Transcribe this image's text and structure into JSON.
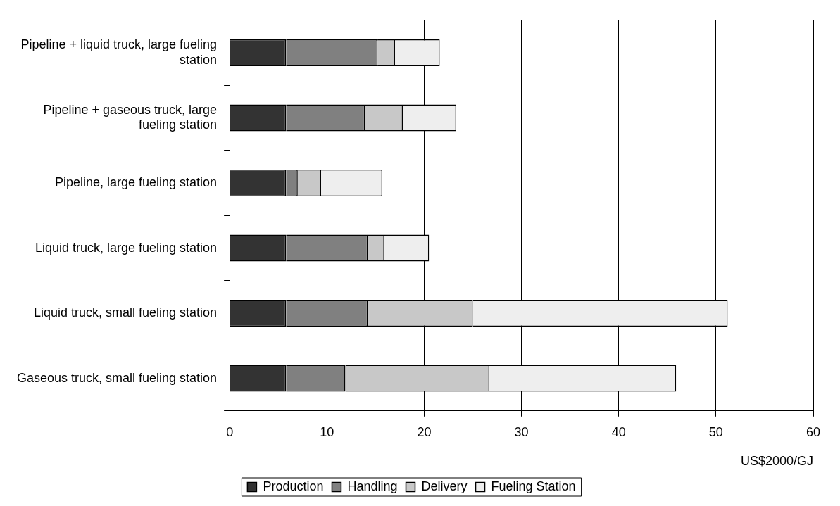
{
  "chart_data": {
    "type": "bar",
    "orientation": "horizontal",
    "stacked": true,
    "categories": [
      "Pipeline + liquid truck, large fueling station",
      "Pipeline + gaseous truck, large fueling station",
      "Pipeline, large fueling station",
      "Liquid truck, large fueling station",
      "Liquid truck, small fueling station",
      "Gaseous truck, small fueling station"
    ],
    "series": [
      {
        "name": "Production",
        "color": "#333333",
        "values": [
          5.8,
          5.8,
          5.8,
          5.8,
          5.8,
          5.8
        ]
      },
      {
        "name": "Handling",
        "color": "#808080",
        "values": [
          9.4,
          8.1,
          1.2,
          8.4,
          8.4,
          6.1
        ]
      },
      {
        "name": "Delivery",
        "color": "#c8c8c8",
        "values": [
          1.8,
          3.9,
          2.4,
          1.7,
          10.8,
          14.8
        ]
      },
      {
        "name": "Fueling Station",
        "color": "#eeeeee",
        "values": [
          4.6,
          5.5,
          6.3,
          4.6,
          26.2,
          19.2
        ]
      }
    ],
    "xlim": [
      0,
      60
    ],
    "xticks": [
      0,
      10,
      20,
      30,
      40,
      50,
      60
    ],
    "xlabel": "US$2000/GJ",
    "grid": "x",
    "legend": "bottom"
  }
}
